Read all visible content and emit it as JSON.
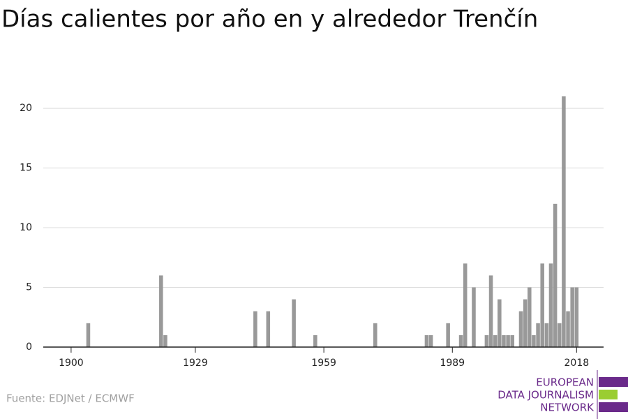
{
  "chart_data": {
    "type": "bar",
    "title": "Días calientes por año en y alrededor Trenčín",
    "x": [
      1904,
      1921,
      1922,
      1943,
      1946,
      1952,
      1957,
      1971,
      1983,
      1984,
      1988,
      1991,
      1992,
      1994,
      1997,
      1998,
      1999,
      2000,
      2001,
      2002,
      2003,
      2005,
      2006,
      2007,
      2008,
      2009,
      2010,
      2011,
      2012,
      2013,
      2014,
      2015,
      2016,
      2017,
      2018
    ],
    "values": [
      2,
      6,
      1,
      3,
      3,
      4,
      1,
      2,
      1,
      1,
      2,
      1,
      7,
      5,
      1,
      6,
      1,
      4,
      1,
      1,
      1,
      3,
      4,
      5,
      1,
      2,
      7,
      2,
      7,
      12,
      2,
      21,
      3,
      5,
      5
    ],
    "color": "#999999",
    "xlim": [
      1893.5,
      2024.3
    ],
    "xticks": [
      1900,
      1929,
      1959,
      1989,
      2018
    ],
    "ylim": [
      0,
      21
    ],
    "yticks": [
      0,
      5,
      10,
      15,
      20
    ],
    "grid": true,
    "source": "Fuente: EDJNet / ECMWF",
    "logo": [
      "EUROPEAN",
      "DATA JOURNALISM",
      "NETWORK"
    ]
  }
}
